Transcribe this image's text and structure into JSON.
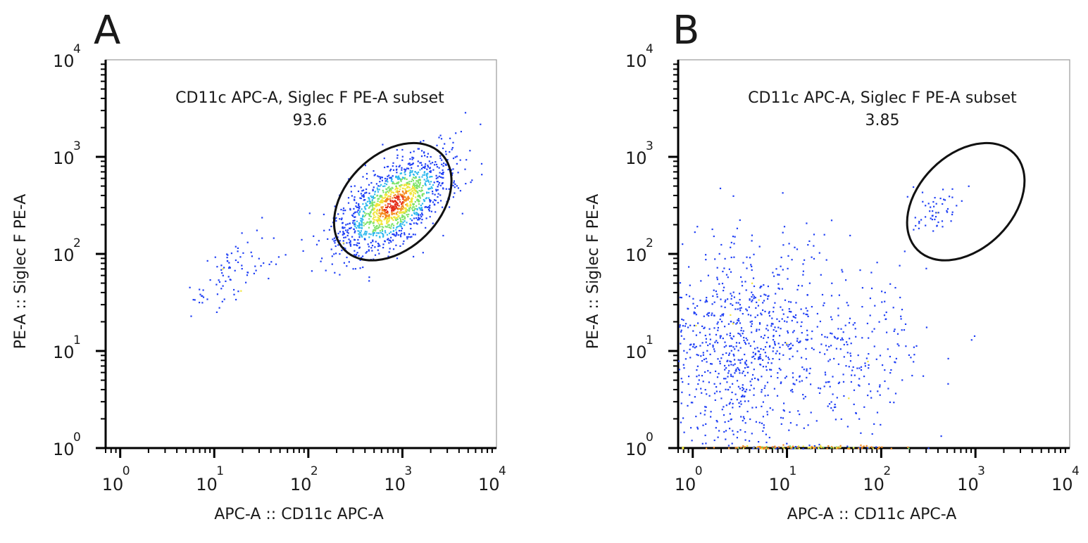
{
  "chart_data": [
    {
      "type": "scatter",
      "panel_label": "A",
      "xlabel": "APC-A :: CD11c APC-A",
      "ylabel": "PE-A :: Siglec F PE-A",
      "x_scale": "log",
      "y_scale": "log",
      "xlim": [
        0.7,
        10000
      ],
      "ylim": [
        1,
        10000
      ],
      "x_ticks": [
        {
          "base": "10",
          "exp": "0",
          "value": 1
        },
        {
          "base": "10",
          "exp": "1",
          "value": 10
        },
        {
          "base": "10",
          "exp": "2",
          "value": 100
        },
        {
          "base": "10",
          "exp": "3",
          "value": 1000
        },
        {
          "base": "10",
          "exp": "4",
          "value": 10000
        }
      ],
      "y_ticks": [
        {
          "base": "10",
          "exp": "0",
          "value": 1
        },
        {
          "base": "10",
          "exp": "1",
          "value": 10
        },
        {
          "base": "10",
          "exp": "2",
          "value": 100
        },
        {
          "base": "10",
          "exp": "3",
          "value": 1000
        },
        {
          "base": "10",
          "exp": "4",
          "value": 10000
        }
      ],
      "gate": {
        "name": "CD11c APC-A, Siglec F PE-A subset",
        "percent": "93.6",
        "shape": "ellipse",
        "center": [
          790,
          345
        ],
        "angle_deg": 45
      },
      "populations": [
        {
          "center": [
            800,
            330
          ],
          "spread": [
            0.3,
            0.26
          ],
          "count": 1350,
          "correlation": 0.6,
          "density": "high"
        },
        {
          "center": [
            16,
            70
          ],
          "spread": [
            0.22,
            0.2
          ],
          "count": 85,
          "correlation": 0.7,
          "density": "low"
        },
        {
          "center": [
            220,
            150
          ],
          "spread": [
            0.08,
            0.1
          ],
          "count": 22,
          "correlation": 0.2,
          "density": "low"
        }
      ],
      "density_colors": [
        "#1f3ff5",
        "#2fb9ee",
        "#7ee36a",
        "#f0e53a",
        "#f58a1e",
        "#e42a16"
      ]
    },
    {
      "type": "scatter",
      "panel_label": "B",
      "xlabel": "APC-A :: CD11c APC-A",
      "ylabel": "PE-A :: Siglec F PE-A",
      "x_scale": "log",
      "y_scale": "log",
      "xlim": [
        0.7,
        10000
      ],
      "ylim": [
        1,
        10000
      ],
      "x_ticks": [
        {
          "base": "10",
          "exp": "0",
          "value": 1
        },
        {
          "base": "10",
          "exp": "1",
          "value": 10
        },
        {
          "base": "10",
          "exp": "2",
          "value": 100
        },
        {
          "base": "10",
          "exp": "3",
          "value": 1000
        },
        {
          "base": "10",
          "exp": "4",
          "value": 10000
        }
      ],
      "y_ticks": [
        {
          "base": "10",
          "exp": "0",
          "value": 1
        },
        {
          "base": "10",
          "exp": "1",
          "value": 10
        },
        {
          "base": "10",
          "exp": "2",
          "value": 100
        },
        {
          "base": "10",
          "exp": "3",
          "value": 1000
        },
        {
          "base": "10",
          "exp": "4",
          "value": 10000
        }
      ],
      "gate": {
        "name": "CD11c APC-A, Siglec F PE-A subset",
        "percent": "3.85",
        "shape": "ellipse",
        "center": [
          790,
          345
        ],
        "angle_deg": 45
      },
      "populations": [
        {
          "center": [
            3,
            12
          ],
          "spread": [
            0.45,
            0.55
          ],
          "count": 820,
          "correlation": 0.05,
          "density": "low"
        },
        {
          "center": [
            40,
            8
          ],
          "spread": [
            0.45,
            0.5
          ],
          "count": 260,
          "correlation": 0.1,
          "density": "low"
        },
        {
          "center": [
            350,
            280
          ],
          "spread": [
            0.17,
            0.14
          ],
          "count": 55,
          "correlation": 0.4,
          "density": "low"
        },
        {
          "center": [
            15,
            1.02
          ],
          "spread": [
            0.55,
            0.01
          ],
          "count": 160,
          "correlation": 0,
          "density": "floor"
        }
      ],
      "density_colors": [
        "#1f3ff5",
        "#2fb9ee",
        "#7ee36a",
        "#f0e53a",
        "#f58a1e",
        "#e42a16"
      ]
    }
  ]
}
